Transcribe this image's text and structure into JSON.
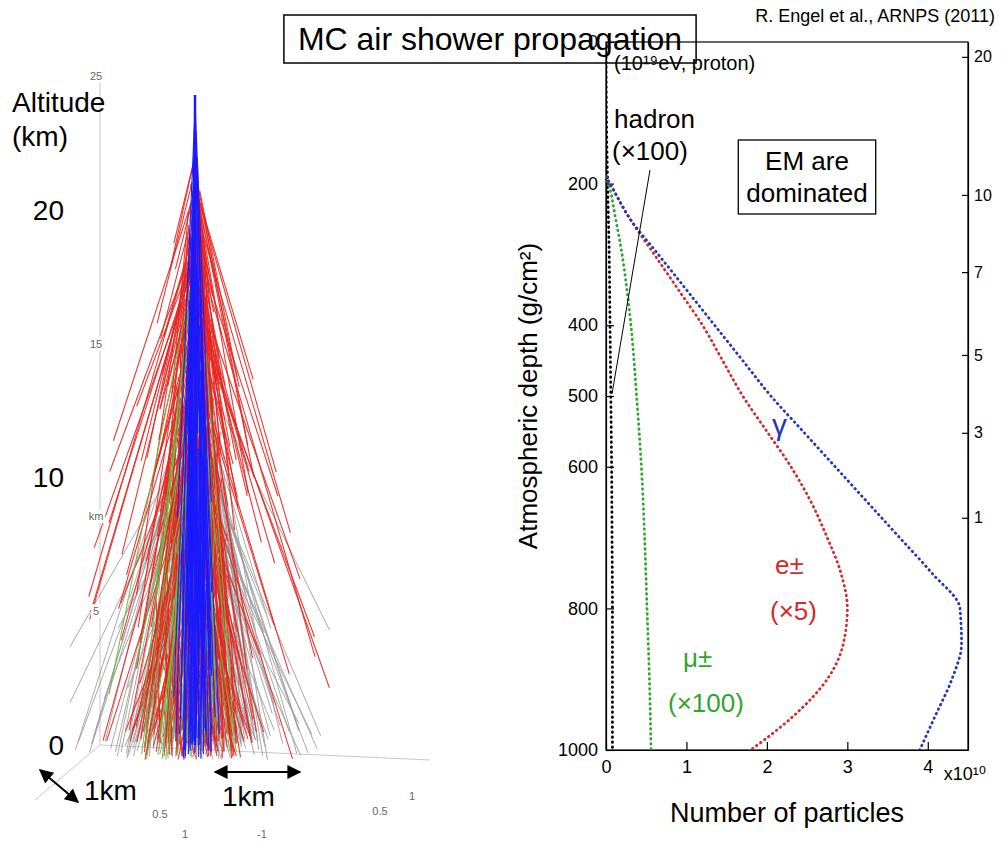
{
  "title": "MC air shower propagation",
  "shower_image": {
    "altitude_label": "Altitude (km)",
    "altitude_lim": [
      0,
      25
    ],
    "altitude_ticks": [
      0,
      10,
      20
    ],
    "altitude_minor_ticks": [
      5,
      15,
      25
    ],
    "altitude_unit": "km",
    "scale_bars": [
      "1km",
      "1km"
    ],
    "ground_ticks": [
      0.5,
      1,
      -1,
      0.5,
      1
    ]
  },
  "chart_data": {
    "type": "line",
    "source": "R. Engel et al., ARNPS (2011)",
    "subtitle": "(10¹⁹eV, proton)",
    "annotation": "EM are dominated",
    "xlabel": "Number of particles",
    "x_multiplier": "x10¹⁰",
    "ylabel": "Atmospheric depth (g/cm²)",
    "xlim": [
      0,
      4.5
    ],
    "xticks": [
      0,
      1,
      2,
      3,
      4
    ],
    "ylim": [
      0,
      1000
    ],
    "yticks": [
      0,
      200,
      400,
      500,
      600,
      800,
      1000
    ],
    "y2ticks": [
      20,
      10,
      7,
      5,
      3,
      1
    ],
    "y2_depths": [
      21,
      216,
      325,
      442,
      552,
      672
    ],
    "line_style": "dotted",
    "series": [
      {
        "name": "hadron",
        "scale_note": "(×100)",
        "color": "#000000",
        "depth": [
          0,
          100,
          200,
          300,
          400,
          500,
          600,
          700,
          800,
          900,
          1000
        ],
        "values": [
          0,
          0.005,
          0.02,
          0.04,
          0.05,
          0.06,
          0.07,
          0.075,
          0.08,
          0.08,
          0.08
        ]
      },
      {
        "name": "μ±",
        "scale_note": "(×100)",
        "color": "#2fa52f",
        "depth": [
          190,
          200,
          250,
          300,
          350,
          400,
          500,
          600,
          700,
          800,
          900,
          1000
        ],
        "values": [
          0,
          0.03,
          0.12,
          0.2,
          0.26,
          0.31,
          0.38,
          0.44,
          0.48,
          0.51,
          0.54,
          0.56
        ]
      },
      {
        "name": "e±",
        "scale_note": "(×5)",
        "color": "#d42a2a",
        "depth": [
          190,
          200,
          250,
          300,
          350,
          400,
          450,
          500,
          550,
          600,
          650,
          700,
          750,
          800,
          850,
          900,
          950,
          1000
        ],
        "values": [
          0,
          0.05,
          0.3,
          0.6,
          0.9,
          1.2,
          1.45,
          1.7,
          2.0,
          2.3,
          2.55,
          2.75,
          2.92,
          3.0,
          2.95,
          2.75,
          2.35,
          1.8
        ]
      },
      {
        "name": "γ",
        "color": "#2436c0",
        "depth": [
          190,
          200,
          250,
          300,
          350,
          400,
          450,
          500,
          550,
          600,
          650,
          700,
          750,
          800,
          850,
          900,
          950,
          1000
        ],
        "values": [
          0,
          0.05,
          0.3,
          0.65,
          1.0,
          1.35,
          1.7,
          2.05,
          2.45,
          2.85,
          3.25,
          3.65,
          4.05,
          4.4,
          4.42,
          4.3,
          4.1,
          3.9
        ]
      }
    ]
  }
}
